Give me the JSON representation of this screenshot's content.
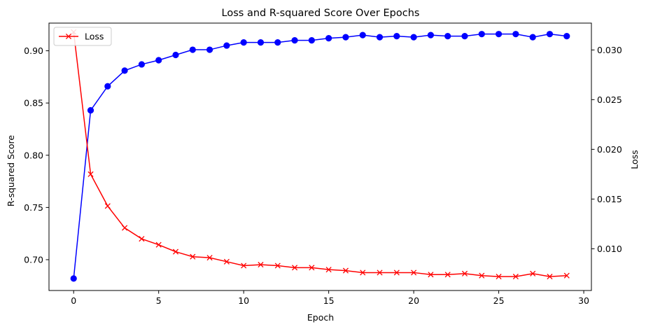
{
  "chart_data": {
    "type": "line",
    "title": "Loss and R-squared Score Over Epochs",
    "xlabel": "Epoch",
    "ylabel_left": "R-squared Score",
    "ylabel_right": "Loss",
    "xlim": [
      -1.45,
      30.45
    ],
    "ylim_left": [
      0.6705,
      0.9265
    ],
    "ylim_right": [
      0.0058,
      0.0327
    ],
    "xticks": [
      0,
      5,
      10,
      15,
      20,
      25,
      30
    ],
    "xtick_labels": [
      "0",
      "5",
      "10",
      "15",
      "20",
      "25",
      "30"
    ],
    "yticks_left": [
      0.7,
      0.75,
      0.8,
      0.85,
      0.9
    ],
    "ytick_labels_left": [
      "0.70",
      "0.75",
      "0.80",
      "0.85",
      "0.90"
    ],
    "yticks_right": [
      0.01,
      0.015,
      0.02,
      0.025,
      0.03
    ],
    "ytick_labels_right": [
      "0.010",
      "0.015",
      "0.020",
      "0.025",
      "0.030"
    ],
    "grid": false,
    "legend_position": "upper-left",
    "x": [
      0,
      1,
      2,
      3,
      4,
      5,
      6,
      7,
      8,
      9,
      10,
      11,
      12,
      13,
      14,
      15,
      16,
      17,
      18,
      19,
      20,
      21,
      22,
      23,
      24,
      25,
      26,
      27,
      28,
      29
    ],
    "series": [
      {
        "axis": "left",
        "color": "#0000ff",
        "marker": "circle",
        "values": [
          0.682,
          0.843,
          0.866,
          0.881,
          0.887,
          0.891,
          0.896,
          0.901,
          0.901,
          0.905,
          0.908,
          0.908,
          0.908,
          0.91,
          0.91,
          0.912,
          0.913,
          0.915,
          0.913,
          0.914,
          0.913,
          0.915,
          0.914,
          0.914,
          0.916,
          0.916,
          0.916,
          0.913,
          0.916,
          0.914
        ]
      },
      {
        "axis": "right",
        "name": "Loss",
        "color": "#ff0000",
        "marker": "x",
        "values": [
          0.0318,
          0.0175,
          0.0143,
          0.0121,
          0.011,
          0.0104,
          0.0097,
          0.0092,
          0.0091,
          0.0087,
          0.0083,
          0.0084,
          0.0083,
          0.0081,
          0.0081,
          0.0079,
          0.0078,
          0.0076,
          0.0076,
          0.0076,
          0.0076,
          0.0074,
          0.0074,
          0.0075,
          0.0073,
          0.0072,
          0.0072,
          0.0075,
          0.0072,
          0.0073
        ]
      }
    ]
  }
}
